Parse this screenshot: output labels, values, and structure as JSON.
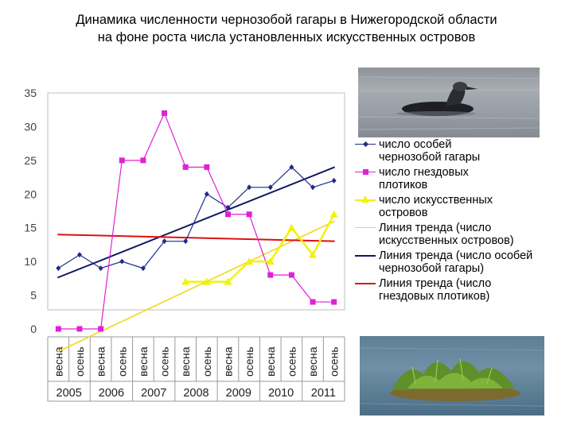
{
  "title": {
    "line1": "Динамика численности чернозобой гагары в Нижегородской области",
    "line2": "на фоне роста числа установленных искусственных островов"
  },
  "photos": {
    "top": "black-throated-loon-photo",
    "bottom": "artificial-island-photo"
  },
  "legend": [
    {
      "key": "loon_count",
      "line1": "число особей",
      "line2": "чернозобой гагары"
    },
    {
      "key": "raft_count",
      "line1": "число гнездовых",
      "line2": "плотиков"
    },
    {
      "key": "island_count",
      "line1": "число искусственных",
      "line2": "островов"
    },
    {
      "key": "trend_islands",
      "line1": "Линия тренда (число",
      "line2": "искусственных островов)"
    },
    {
      "key": "trend_loons",
      "line1": "Линия тренда (число особей",
      "line2": "чернозобой гагары)"
    },
    {
      "key": "trend_rafts",
      "line1": "Линия тренда (число",
      "line2": "гнездовых плотиков)"
    }
  ],
  "chart_data": {
    "type": "line",
    "title": "Динамика численности чернозобой гагары в Нижегородской области на фоне роста числа установленных искусственных островов",
    "categories": [
      "весна",
      "осень",
      "весна",
      "осень",
      "весна",
      "осень",
      "весна",
      "осень",
      "весна",
      "осень",
      "весна",
      "осень",
      "весна",
      "осень"
    ],
    "years": [
      "2005",
      "2006",
      "2007",
      "2008",
      "2009",
      "2010",
      "2011"
    ],
    "ylim": [
      0,
      35
    ],
    "yticks": [
      "0",
      "5",
      "10",
      "15",
      "20",
      "25",
      "30",
      "35"
    ],
    "grid": false,
    "series": [
      {
        "name": "число особей чернозобой гагары",
        "color": "#1f2a8c",
        "marker": "diamond",
        "values": [
          9,
          11,
          9,
          10,
          9,
          13,
          13,
          20,
          18,
          21,
          21,
          24,
          21,
          22
        ]
      },
      {
        "name": "число гнездовых плотиков",
        "color": "#e020d8",
        "marker": "square",
        "values": [
          0,
          0,
          0,
          25,
          25,
          32,
          24,
          24,
          17,
          17,
          8,
          8,
          4,
          4
        ]
      },
      {
        "name": "число искусственных островов",
        "color": "#f2f20a",
        "marker": "triangle",
        "values": [
          null,
          null,
          null,
          null,
          null,
          null,
          7,
          7,
          7,
          10,
          10,
          15,
          11,
          17
        ]
      }
    ],
    "trendlines": [
      {
        "name": "Линия тренда (число искусственных островов)",
        "color": "#f0d81a",
        "from": -3.4,
        "to": 16
      },
      {
        "name": "Линия тренда (число особей чернозобой гагары)",
        "color": "#101860",
        "from": 7.6,
        "to": 24
      },
      {
        "name": "Линия тренда (число гнездовых плотиков)",
        "color": "#e01010",
        "from": 14,
        "to": 13
      }
    ]
  }
}
